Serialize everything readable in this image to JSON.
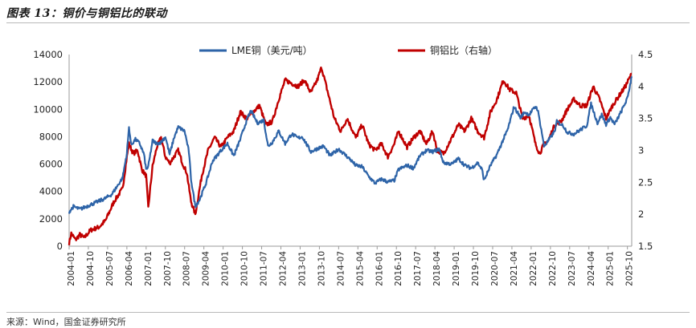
{
  "figure": {
    "title": "图表 13：铜价与铜铝比的联动",
    "source": "来源：Wind，国金证券研究所"
  },
  "chart_data": {
    "type": "line",
    "x_start": "2004-01",
    "x_end": "2025-12",
    "xticks": [
      "2004-01",
      "2004-10",
      "2005-07",
      "2006-04",
      "2007-01",
      "2007-10",
      "2008-07",
      "2009-04",
      "2010-01",
      "2010-10",
      "2011-07",
      "2012-04",
      "2013-01",
      "2013-10",
      "2014-07",
      "2015-04",
      "2016-01",
      "2016-10",
      "2017-07",
      "2018-04",
      "2019-01",
      "2019-10",
      "2020-07",
      "2021-04",
      "2022-01",
      "2022-10",
      "2023-07",
      "2024-04",
      "2025-01",
      "2025-10"
    ],
    "y_left": {
      "ylim": [
        0,
        14000
      ],
      "ticks": [
        0,
        2000,
        4000,
        6000,
        8000,
        10000,
        12000,
        14000
      ]
    },
    "y_right": {
      "ylim": [
        1.5,
        4.5
      ],
      "ticks": [
        "1.5",
        "2",
        "2.5",
        "3",
        "3.5",
        "4",
        "4.5"
      ]
    },
    "legend": {
      "placement": "top-center"
    },
    "series": [
      {
        "name": "LME铜（美元/吨）",
        "axis": "left",
        "color": "#2e64a8",
        "points": [
          [
            "2004-01",
            2500
          ],
          [
            "2004-03",
            2900
          ],
          [
            "2004-06",
            2700
          ],
          [
            "2004-09",
            2900
          ],
          [
            "2004-12",
            3100
          ],
          [
            "2005-03",
            3300
          ],
          [
            "2005-06",
            3500
          ],
          [
            "2005-09",
            3800
          ],
          [
            "2005-12",
            4500
          ],
          [
            "2006-02",
            5000
          ],
          [
            "2006-04",
            6800
          ],
          [
            "2006-05",
            8700
          ],
          [
            "2006-06",
            7400
          ],
          [
            "2006-08",
            7800
          ],
          [
            "2006-10",
            7500
          ],
          [
            "2006-12",
            6700
          ],
          [
            "2007-01",
            5600
          ],
          [
            "2007-02",
            5800
          ],
          [
            "2007-04",
            7700
          ],
          [
            "2007-06",
            7500
          ],
          [
            "2007-08",
            7600
          ],
          [
            "2007-10",
            8000
          ],
          [
            "2007-12",
            6700
          ],
          [
            "2008-02",
            7900
          ],
          [
            "2008-04",
            8700
          ],
          [
            "2008-07",
            8400
          ],
          [
            "2008-09",
            6900
          ],
          [
            "2008-10",
            4900
          ],
          [
            "2008-12",
            2900
          ],
          [
            "2009-02",
            3400
          ],
          [
            "2009-05",
            4600
          ],
          [
            "2009-08",
            6200
          ],
          [
            "2009-12",
            7000
          ],
          [
            "2010-03",
            7500
          ],
          [
            "2010-06",
            6600
          ],
          [
            "2010-09",
            7800
          ],
          [
            "2010-12",
            9200
          ],
          [
            "2011-02",
            9900
          ],
          [
            "2011-05",
            9000
          ],
          [
            "2011-08",
            9200
          ],
          [
            "2011-10",
            7300
          ],
          [
            "2011-12",
            7600
          ],
          [
            "2012-03",
            8400
          ],
          [
            "2012-06",
            7500
          ],
          [
            "2012-09",
            8200
          ],
          [
            "2012-12",
            7900
          ],
          [
            "2013-02",
            8000
          ],
          [
            "2013-06",
            6900
          ],
          [
            "2013-10",
            7200
          ],
          [
            "2013-12",
            7300
          ],
          [
            "2014-03",
            6600
          ],
          [
            "2014-07",
            7100
          ],
          [
            "2014-12",
            6400
          ],
          [
            "2015-03",
            5900
          ],
          [
            "2015-06",
            5800
          ],
          [
            "2015-09",
            5100
          ],
          [
            "2015-12",
            4600
          ],
          [
            "2016-03",
            4900
          ],
          [
            "2016-06",
            4700
          ],
          [
            "2016-09",
            4800
          ],
          [
            "2016-11",
            5600
          ],
          [
            "2017-03",
            5900
          ],
          [
            "2017-06",
            5700
          ],
          [
            "2017-09",
            6600
          ],
          [
            "2017-12",
            7000
          ],
          [
            "2018-03",
            6900
          ],
          [
            "2018-06",
            7100
          ],
          [
            "2018-08",
            6100
          ],
          [
            "2018-12",
            6000
          ],
          [
            "2019-03",
            6400
          ],
          [
            "2019-06",
            5900
          ],
          [
            "2019-09",
            5700
          ],
          [
            "2019-12",
            6100
          ],
          [
            "2020-02",
            5600
          ],
          [
            "2020-03",
            4800
          ],
          [
            "2020-06",
            5900
          ],
          [
            "2020-09",
            6700
          ],
          [
            "2020-12",
            7800
          ],
          [
            "2021-02",
            8500
          ],
          [
            "2021-05",
            10200
          ],
          [
            "2021-08",
            9400
          ],
          [
            "2021-10",
            9800
          ],
          [
            "2021-12",
            9600
          ],
          [
            "2022-03",
            10200
          ],
          [
            "2022-04",
            10000
          ],
          [
            "2022-06",
            8300
          ],
          [
            "2022-07",
            7300
          ],
          [
            "2022-09",
            7700
          ],
          [
            "2022-12",
            8400
          ],
          [
            "2023-01",
            9100
          ],
          [
            "2023-04",
            8800
          ],
          [
            "2023-06",
            8300
          ],
          [
            "2023-09",
            8200
          ],
          [
            "2023-12",
            8500
          ],
          [
            "2024-03",
            8800
          ],
          [
            "2024-05",
            10400
          ],
          [
            "2024-08",
            9000
          ],
          [
            "2024-10",
            9600
          ],
          [
            "2024-12",
            8900
          ],
          [
            "2025-02",
            9400
          ],
          [
            "2025-04",
            8900
          ],
          [
            "2025-07",
            9800
          ],
          [
            "2025-10",
            10800
          ],
          [
            "2025-12",
            12400
          ]
        ]
      },
      {
        "name": "铜铝比（右轴）",
        "axis": "right",
        "color": "#c00000",
        "points": [
          [
            "2004-01",
            1.55
          ],
          [
            "2004-02",
            1.7
          ],
          [
            "2004-04",
            1.6
          ],
          [
            "2004-06",
            1.68
          ],
          [
            "2004-08",
            1.63
          ],
          [
            "2004-11",
            1.75
          ],
          [
            "2005-03",
            1.8
          ],
          [
            "2005-06",
            1.9
          ],
          [
            "2005-10",
            2.2
          ],
          [
            "2005-12",
            2.3
          ],
          [
            "2006-02",
            2.4
          ],
          [
            "2006-04",
            2.9
          ],
          [
            "2006-05",
            3.1
          ],
          [
            "2006-07",
            2.95
          ],
          [
            "2006-09",
            3.0
          ],
          [
            "2006-11",
            2.7
          ],
          [
            "2007-01",
            2.6
          ],
          [
            "2007-02",
            2.1
          ],
          [
            "2007-04",
            2.75
          ],
          [
            "2007-06",
            3.05
          ],
          [
            "2007-08",
            3.2
          ],
          [
            "2007-10",
            2.9
          ],
          [
            "2007-12",
            2.8
          ],
          [
            "2008-02",
            2.9
          ],
          [
            "2008-04",
            3.0
          ],
          [
            "2008-06",
            2.8
          ],
          [
            "2008-08",
            2.65
          ],
          [
            "2008-10",
            2.2
          ],
          [
            "2008-12",
            2.0
          ],
          [
            "2009-03",
            2.6
          ],
          [
            "2009-06",
            3.0
          ],
          [
            "2009-09",
            3.2
          ],
          [
            "2009-12",
            3.05
          ],
          [
            "2010-03",
            3.2
          ],
          [
            "2010-06",
            3.3
          ],
          [
            "2010-09",
            3.6
          ],
          [
            "2010-12",
            3.5
          ],
          [
            "2011-03",
            3.6
          ],
          [
            "2011-06",
            3.7
          ],
          [
            "2011-09",
            3.4
          ],
          [
            "2011-12",
            3.45
          ],
          [
            "2012-03",
            3.8
          ],
          [
            "2012-06",
            4.1
          ],
          [
            "2012-09",
            4.05
          ],
          [
            "2012-12",
            4.0
          ],
          [
            "2013-03",
            4.1
          ],
          [
            "2013-06",
            3.9
          ],
          [
            "2013-09",
            4.1
          ],
          [
            "2013-11",
            4.3
          ],
          [
            "2014-02",
            3.9
          ],
          [
            "2014-05",
            3.5
          ],
          [
            "2014-08",
            3.3
          ],
          [
            "2014-11",
            3.5
          ],
          [
            "2015-03",
            3.2
          ],
          [
            "2015-06",
            3.4
          ],
          [
            "2015-09",
            3.1
          ],
          [
            "2015-12",
            3.0
          ],
          [
            "2016-03",
            3.1
          ],
          [
            "2016-06",
            2.9
          ],
          [
            "2016-09",
            3.1
          ],
          [
            "2016-11",
            3.3
          ],
          [
            "2017-03",
            3.05
          ],
          [
            "2017-06",
            3.2
          ],
          [
            "2017-09",
            3.3
          ],
          [
            "2017-12",
            3.1
          ],
          [
            "2018-03",
            3.3
          ],
          [
            "2018-05",
            3.0
          ],
          [
            "2018-08",
            2.95
          ],
          [
            "2018-12",
            3.2
          ],
          [
            "2019-03",
            3.4
          ],
          [
            "2019-06",
            3.3
          ],
          [
            "2019-09",
            3.5
          ],
          [
            "2019-12",
            3.3
          ],
          [
            "2020-03",
            3.2
          ],
          [
            "2020-06",
            3.6
          ],
          [
            "2020-09",
            3.8
          ],
          [
            "2020-12",
            4.1
          ],
          [
            "2021-03",
            3.95
          ],
          [
            "2021-06",
            3.9
          ],
          [
            "2021-09",
            3.5
          ],
          [
            "2021-12",
            3.55
          ],
          [
            "2022-03",
            3.1
          ],
          [
            "2022-05",
            2.95
          ],
          [
            "2022-07",
            3.1
          ],
          [
            "2022-09",
            3.15
          ],
          [
            "2022-12",
            3.4
          ],
          [
            "2023-03",
            3.45
          ],
          [
            "2023-06",
            3.65
          ],
          [
            "2023-09",
            3.8
          ],
          [
            "2023-12",
            3.7
          ],
          [
            "2024-03",
            3.7
          ],
          [
            "2024-06",
            4.0
          ],
          [
            "2024-09",
            3.8
          ],
          [
            "2024-12",
            3.5
          ],
          [
            "2025-03",
            3.7
          ],
          [
            "2025-06",
            3.85
          ],
          [
            "2025-09",
            4.0
          ],
          [
            "2025-12",
            4.2
          ]
        ]
      }
    ]
  }
}
